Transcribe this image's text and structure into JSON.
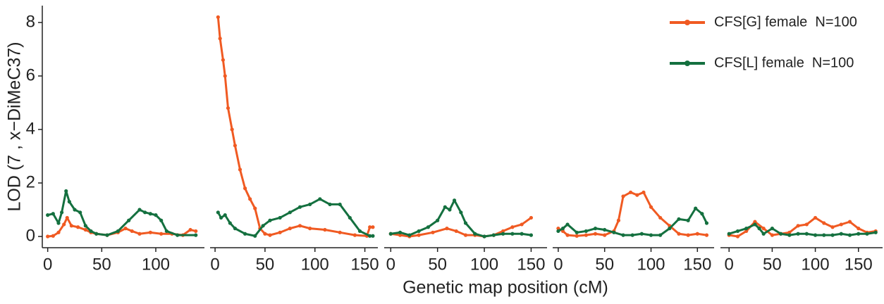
{
  "chart_data": {
    "type": "line",
    "xlabel": "Genetic map position (cM)",
    "ylabel": "LOD (7 , x−DiMeC37)",
    "ylim": [
      -0.42,
      8.63
    ],
    "yticks": [
      0,
      2,
      4,
      6,
      8
    ],
    "series": [
      {
        "name": "CFS[G] female  N=100",
        "color": "#f05a22"
      },
      {
        "name": "CFS[L] female  N=100",
        "color": "#14703f"
      }
    ],
    "panels": [
      {
        "xlim": [
          -5,
          145
        ],
        "xticks": [
          0,
          50,
          100
        ],
        "lines": [
          {
            "x": [
              0,
              5,
              10,
              15,
              18,
              22,
              28,
              35,
              40,
              45,
              55,
              65,
              72,
              78,
              85,
              95,
              105,
              115,
              125,
              132,
              137
            ],
            "values": [
              0,
              0.02,
              0.15,
              0.45,
              0.7,
              0.4,
              0.35,
              0.25,
              0.15,
              0.1,
              0.05,
              0.15,
              0.3,
              0.2,
              0.1,
              0.15,
              0.1,
              0.1,
              0.05,
              0.25,
              0.2
            ]
          },
          {
            "x": [
              0,
              5,
              10,
              13,
              17,
              20,
              25,
              30,
              35,
              40,
              45,
              55,
              65,
              75,
              85,
              90,
              95,
              100,
              105,
              110,
              120,
              137
            ],
            "values": [
              0.8,
              0.85,
              0.5,
              0.9,
              1.7,
              1.3,
              1.0,
              0.9,
              0.4,
              0.2,
              0.1,
              0.05,
              0.2,
              0.6,
              1.0,
              0.9,
              0.85,
              0.8,
              0.6,
              0.2,
              0.05,
              0.05
            ]
          }
        ]
      },
      {
        "xlim": [
          -5,
          163
        ],
        "xticks": [
          0,
          50,
          100,
          150
        ],
        "lines": [
          {
            "x": [
              3,
              5,
              8,
              10,
              13,
              17,
              20,
              25,
              30,
              35,
              40,
              45,
              50,
              55,
              65,
              75,
              85,
              95,
              110,
              125,
              140,
              152,
              155,
              158
            ],
            "values": [
              8.2,
              7.4,
              6.6,
              6.0,
              4.8,
              4.0,
              3.4,
              2.5,
              1.8,
              1.4,
              1.05,
              0.3,
              0.1,
              0.05,
              0.15,
              0.3,
              0.4,
              0.3,
              0.25,
              0.15,
              0.05,
              0.02,
              0.35,
              0.35
            ]
          },
          {
            "x": [
              3,
              6,
              10,
              15,
              20,
              30,
              40,
              48,
              55,
              65,
              75,
              85,
              95,
              105,
              115,
              125,
              135,
              145,
              155,
              158
            ],
            "values": [
              0.9,
              0.7,
              0.8,
              0.5,
              0.3,
              0.1,
              0.02,
              0.4,
              0.6,
              0.7,
              0.9,
              1.1,
              1.2,
              1.4,
              1.2,
              1.2,
              0.7,
              0.2,
              0.02,
              0.02
            ]
          }
        ]
      },
      {
        "xlim": [
          -7,
          167
        ],
        "xticks": [
          0,
          50,
          100,
          150
        ],
        "lines": [
          {
            "x": [
              0,
              10,
              20,
              30,
              45,
              60,
              70,
              80,
              90,
              100,
              110,
              120,
              130,
              140,
              150
            ],
            "values": [
              0.1,
              0.05,
              0,
              0.05,
              0.15,
              0.3,
              0.2,
              0.05,
              0.05,
              0,
              0.05,
              0.2,
              0.35,
              0.45,
              0.7
            ]
          },
          {
            "x": [
              0,
              10,
              20,
              30,
              40,
              50,
              58,
              63,
              68,
              75,
              80,
              90,
              100,
              110,
              120,
              130,
              140,
              150
            ],
            "values": [
              0.1,
              0.15,
              0.05,
              0.2,
              0.35,
              0.6,
              1.1,
              1.0,
              1.35,
              0.9,
              0.5,
              0.1,
              0,
              0.05,
              0.1,
              0.1,
              0.1,
              0.05
            ]
          }
        ]
      },
      {
        "xlim": [
          -6,
          168
        ],
        "xticks": [
          0,
          50,
          100,
          150
        ],
        "lines": [
          {
            "x": [
              0,
              5,
              10,
              20,
              30,
              40,
              50,
              60,
              65,
              70,
              78,
              85,
              92,
              100,
              110,
              120,
              130,
              140,
              150,
              160
            ],
            "values": [
              0.3,
              0.2,
              0.05,
              0.02,
              0.05,
              0.1,
              0.05,
              0.2,
              0.6,
              1.5,
              1.65,
              1.55,
              1.65,
              1.1,
              0.7,
              0.4,
              0.1,
              0.05,
              0.1,
              0.05
            ]
          },
          {
            "x": [
              0,
              5,
              10,
              20,
              30,
              40,
              50,
              60,
              70,
              80,
              90,
              100,
              110,
              120,
              130,
              140,
              148,
              155,
              160
            ],
            "values": [
              0.2,
              0.3,
              0.45,
              0.15,
              0.2,
              0.3,
              0.25,
              0.15,
              0.05,
              0.05,
              0.1,
              0.05,
              0.05,
              0.3,
              0.65,
              0.6,
              1.05,
              0.85,
              0.5
            ]
          }
        ]
      },
      {
        "xlim": [
          -10,
          178
        ],
        "xticks": [
          0,
          50,
          100,
          150
        ],
        "lines": [
          {
            "x": [
              0,
              10,
              20,
              30,
              40,
              50,
              60,
              70,
              80,
              90,
              100,
              110,
              120,
              130,
              140,
              150,
              160,
              170
            ],
            "values": [
              0.05,
              0,
              0.2,
              0.55,
              0.3,
              0.05,
              0.1,
              0.15,
              0.4,
              0.45,
              0.7,
              0.5,
              0.35,
              0.45,
              0.55,
              0.3,
              0.15,
              0.2
            ]
          },
          {
            "x": [
              0,
              10,
              20,
              30,
              35,
              40,
              50,
              60,
              70,
              80,
              90,
              100,
              110,
              120,
              130,
              140,
              150,
              160,
              170
            ],
            "values": [
              0.1,
              0.2,
              0.3,
              0.45,
              0.3,
              0.1,
              0.3,
              0.1,
              0.05,
              0.1,
              0.1,
              0.05,
              0.05,
              0.05,
              0.1,
              0.05,
              0.1,
              0.1,
              0.15
            ]
          }
        ]
      }
    ]
  }
}
